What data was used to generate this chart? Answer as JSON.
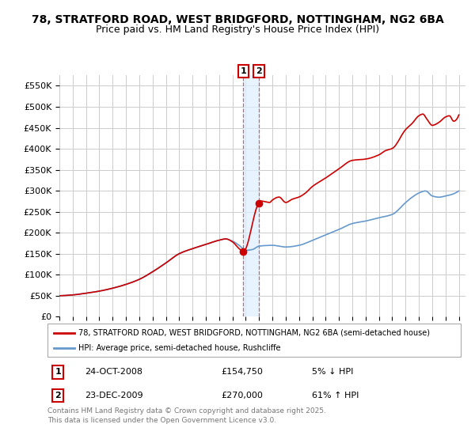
{
  "title_line1": "78, STRATFORD ROAD, WEST BRIDGFORD, NOTTINGHAM, NG2 6BA",
  "title_line2": "Price paid vs. HM Land Registry's House Price Index (HPI)",
  "ylim": [
    0,
    575000
  ],
  "yticks": [
    0,
    50000,
    100000,
    150000,
    200000,
    250000,
    300000,
    350000,
    400000,
    450000,
    500000,
    550000
  ],
  "ytick_labels": [
    "£0",
    "£50K",
    "£100K",
    "£150K",
    "£200K",
    "£250K",
    "£300K",
    "£350K",
    "£400K",
    "£450K",
    "£500K",
    "£550K"
  ],
  "background_color": "#ffffff",
  "plot_bg_color": "#ffffff",
  "grid_color": "#cccccc",
  "red_color": "#cc0000",
  "blue_color": "#6699cc",
  "shade_color": "#ddeeff",
  "vline_color": "#cc6666",
  "marker1_date_num": 2008.82,
  "marker2_date_num": 2009.98,
  "marker1_price": 154750,
  "marker2_price": 270000,
  "legend_label_red": "78, STRATFORD ROAD, WEST BRIDGFORD, NOTTINGHAM, NG2 6BA (semi-detached house)",
  "legend_label_blue": "HPI: Average price, semi-detached house, Rushcliffe",
  "footer": "Contains HM Land Registry data © Crown copyright and database right 2025.\nThis data is licensed under the Open Government Licence v3.0.",
  "xmin": 1995.0,
  "xmax": 2025.5
}
